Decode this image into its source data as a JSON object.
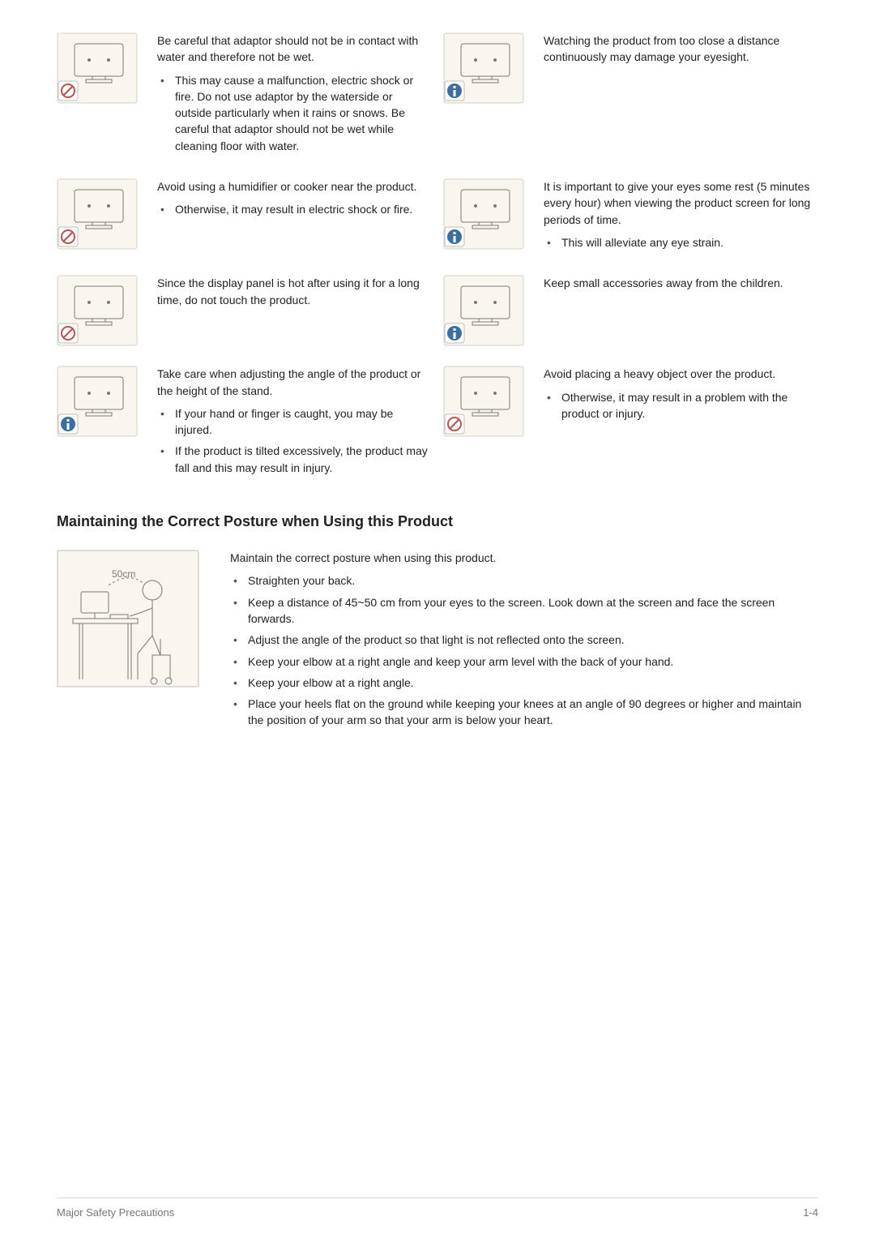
{
  "colors": {
    "text": "#222222",
    "muted": "#777777",
    "divider": "#d9d9d9",
    "iconBg": "#f9f5ef",
    "iconStroke": "#7a7a7a",
    "prohibit": "#c0504d",
    "infoBlue": "#3b6ea5"
  },
  "rows": [
    {
      "left": {
        "iconType": "prohibit",
        "lead": "Be careful that adaptor should not be in contact with water and therefore not be wet.",
        "bullets": [
          "This may cause a malfunction, electric shock or fire. Do not use adaptor by the waterside or outside particularly when it rains or snows. Be careful that adaptor should not be wet while cleaning floor with water."
        ]
      },
      "right": {
        "iconType": "info",
        "lead": "Watching the product from too close a distance continuously may damage your eyesight.",
        "bullets": []
      }
    },
    {
      "left": {
        "iconType": "prohibit",
        "lead": "Avoid using a humidifier or cooker near the product.",
        "bullets": [
          "Otherwise, it may result in electric shock or fire."
        ]
      },
      "right": {
        "iconType": "info",
        "lead": "It is important to give your eyes some rest (5 minutes every hour) when viewing the product screen for long periods of time.",
        "bullets": [
          "This will alleviate any eye strain."
        ]
      }
    },
    {
      "left": {
        "iconType": "prohibit",
        "lead": "Since the display panel is hot after using it for a long time, do not touch the product.",
        "bullets": []
      },
      "right": {
        "iconType": "info",
        "lead": "Keep small accessories away from the children.",
        "bullets": []
      }
    },
    {
      "left": {
        "iconType": "info",
        "lead": "Take care when adjusting the angle of the product or the height of the stand.",
        "bullets": [
          "If your hand or finger is caught, you may be injured.",
          "If the product is tilted excessively, the product may fall and this may result in injury."
        ]
      },
      "right": {
        "iconType": "prohibit",
        "lead": "Avoid placing a heavy object over the product.",
        "bullets": [
          "Otherwise, it may result in a problem with the product or injury."
        ]
      }
    }
  ],
  "sectionHeading": "Maintaining the Correct Posture when Using this Product",
  "posture": {
    "lead": "Maintain the correct posture when using this product.",
    "bullets": [
      "Straighten your back.",
      "Keep a distance of 45~50 cm from your eyes to the screen. Look down at the screen and face the screen forwards.",
      "Adjust the angle of the product so that light is not reflected onto the screen.",
      "Keep your elbow at a right angle and keep your arm level with the back of your hand.",
      "Keep your elbow at a right angle.",
      "Place your heels flat on the ground while keeping your knees at an angle of 90 degrees or higher and maintain the position of your arm so that your arm is below your heart."
    ],
    "iconLabel": "50cm"
  },
  "footer": {
    "left": "Major Safety Precautions",
    "right": "1-4"
  }
}
